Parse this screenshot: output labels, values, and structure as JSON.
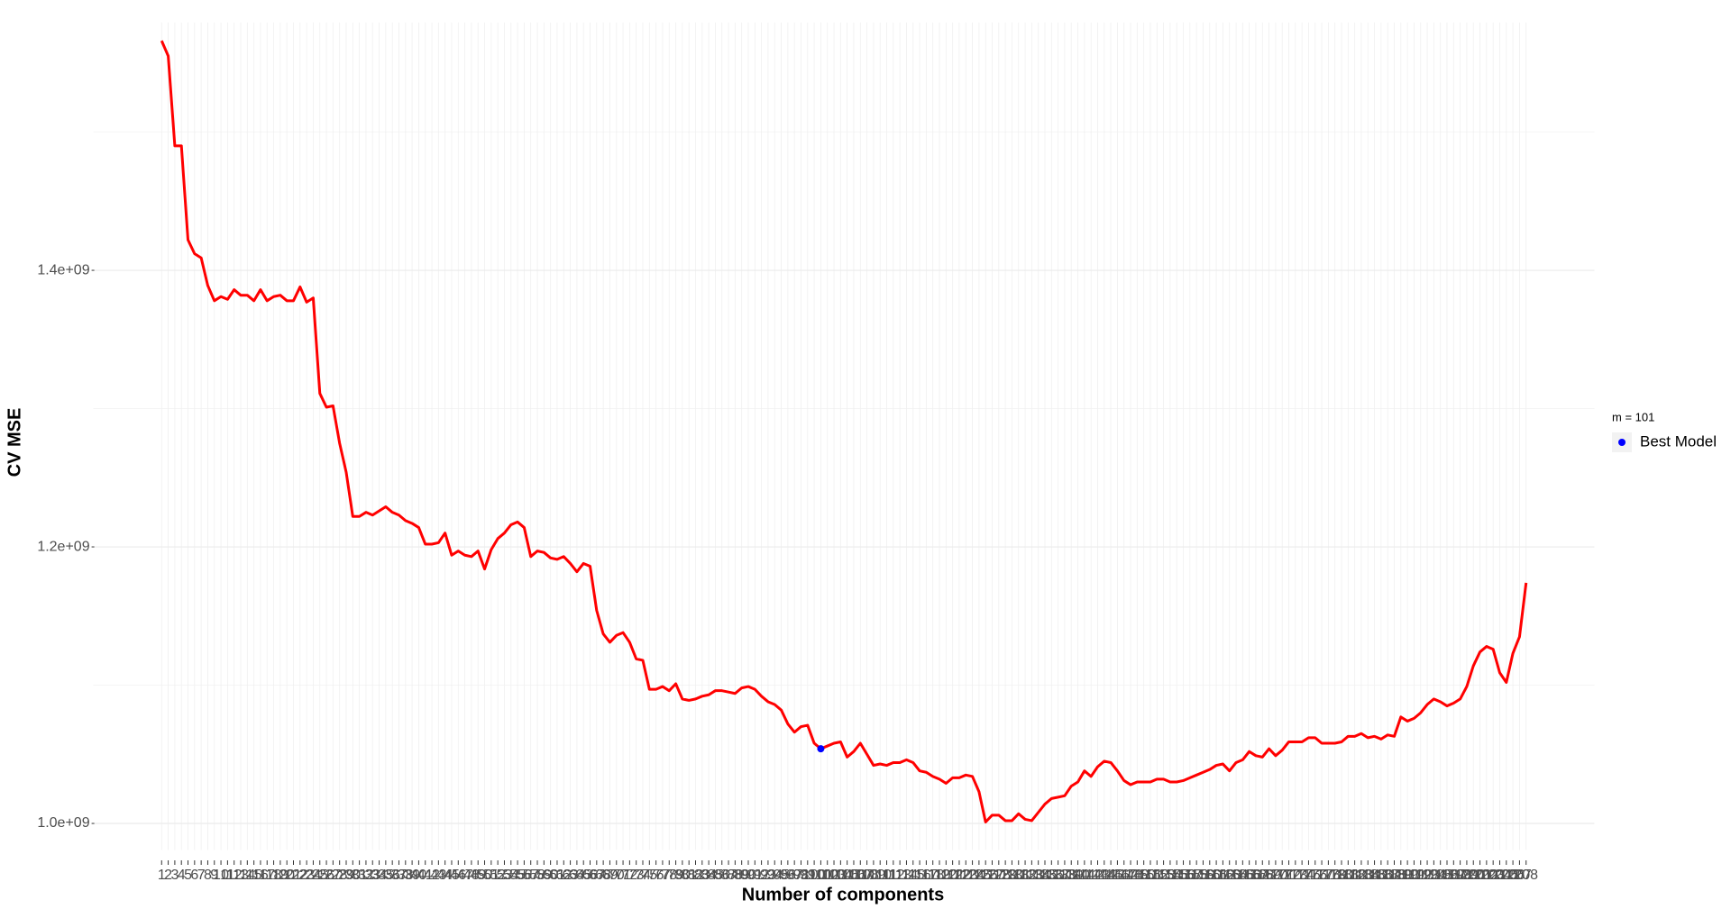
{
  "chart_data": {
    "type": "line",
    "xlabel": "Number of components",
    "ylabel": "CV MSE",
    "x": [
      1,
      2,
      3,
      4,
      5,
      6,
      7,
      8,
      9,
      10,
      11,
      12,
      13,
      14,
      15,
      16,
      17,
      18,
      19,
      20,
      21,
      22,
      23,
      24,
      25,
      26,
      27,
      28,
      29,
      30,
      31,
      32,
      33,
      34,
      35,
      36,
      37,
      38,
      39,
      40,
      41,
      42,
      43,
      44,
      45,
      46,
      47,
      48,
      49,
      50,
      51,
      52,
      53,
      54,
      55,
      56,
      57,
      58,
      59,
      60,
      61,
      62,
      63,
      64,
      65,
      66,
      67,
      68,
      69,
      70,
      71,
      72,
      73,
      74,
      75,
      76,
      77,
      78,
      79,
      80,
      81,
      82,
      83,
      84,
      85,
      86,
      87,
      88,
      89,
      90,
      91,
      92,
      93,
      94,
      95,
      96,
      97,
      98,
      99,
      100,
      101,
      102,
      103,
      104,
      105,
      106,
      107,
      108,
      109,
      110,
      111,
      112,
      113,
      114,
      115,
      116,
      117,
      118,
      119,
      120,
      121,
      122,
      123,
      124,
      125,
      126,
      127,
      128,
      129,
      130,
      131,
      132,
      133,
      134,
      135,
      136,
      137,
      138,
      139,
      140,
      141,
      142,
      143,
      144,
      145,
      146,
      147,
      148,
      149,
      150,
      151,
      152,
      153,
      154,
      155,
      156,
      157,
      158,
      159,
      160,
      161,
      162,
      163,
      164,
      165,
      166,
      167,
      168,
      169,
      170,
      171,
      172,
      173,
      174,
      175,
      176,
      177,
      178,
      179,
      180,
      181,
      182,
      183,
      184,
      185,
      186,
      187,
      188,
      189,
      190,
      191,
      192,
      193,
      194,
      195,
      196,
      197,
      198,
      199,
      200,
      201,
      202,
      203,
      204,
      205,
      206,
      207,
      208
    ],
    "xlim": [
      -9.35,
      218.35
    ],
    "ylim": [
      980800000,
      1579200000
    ],
    "yticks": [
      {
        "value": 1000000000,
        "label": "1.0e+09"
      },
      {
        "value": 1200000000,
        "label": "1.2e+09"
      },
      {
        "value": 1400000000,
        "label": "1.4e+09"
      }
    ],
    "yminor": [
      1100000000,
      1300000000,
      1500000000
    ],
    "grid": true,
    "legend": "right",
    "legend_title": "m = 101",
    "series": [
      {
        "color": "#ff0000",
        "values": [
          1566000000.0,
          1555000000.0,
          1490000000.0,
          1490000000.0,
          1422000000.0,
          1412000000.0,
          1409000000.0,
          1389000000.0,
          1378000000.0,
          1381000000.0,
          1379000000.0,
          1386000000.0,
          1382000000.0,
          1382000000.0,
          1378000000.0,
          1386000000.0,
          1378000000.0,
          1381000000.0,
          1382000000.0,
          1378000000.0,
          1378000000.0,
          1388000000.0,
          1377000000.0,
          1380000000.0,
          1311000000.0,
          1301000000.0,
          1302000000.0,
          1275000000.0,
          1254000000.0,
          1222000000.0,
          1222000000.0,
          1225000000.0,
          1223000000.0,
          1226000000.0,
          1229000000.0,
          1225000000.0,
          1223000000.0,
          1219000000.0,
          1217000000.0,
          1214000000.0,
          1202000000.0,
          1202000000.0,
          1203000000.0,
          1210000000.0,
          1194000000.0,
          1197000000.0,
          1194000000.0,
          1193000000.0,
          1197000000.0,
          1184000000.0,
          1198000000.0,
          1206000000.0,
          1210000000.0,
          1216000000.0,
          1218000000.0,
          1214000000.0,
          1193000000.0,
          1197000000.0,
          1196000000.0,
          1192000000.0,
          1191000000.0,
          1193000000.0,
          1188000000.0,
          1182000000.0,
          1188000000.0,
          1186000000.0,
          1154000000.0,
          1137000000.0,
          1131000000.0,
          1136000000.0,
          1138000000.0,
          1131000000.0,
          1119000000.0,
          1118000000.0,
          1097000000.0,
          1097000000.0,
          1099000000.0,
          1096000000.0,
          1101000000.0,
          1090000000.0,
          1089000000.0,
          1090000000.0,
          1092000000.0,
          1093000000.0,
          1096000000.0,
          1096000000.0,
          1095000000.0,
          1094000000.0,
          1098000000.0,
          1099000000.0,
          1097000000.0,
          1092000000.0,
          1088000000.0,
          1086000000.0,
          1082000000.0,
          1072000000.0,
          1066000000.0,
          1070000000.0,
          1071000000.0,
          1058000000.0,
          1054000000.0,
          1056000000.0,
          1058000000.0,
          1059000000.0,
          1048000000.0,
          1052000000.0,
          1058000000.0,
          1050000000.0,
          1042000000.0,
          1043000000.0,
          1042000000.0,
          1044000000.0,
          1044000000.0,
          1046000000.0,
          1044000000.0,
          1038000000.0,
          1037000000.0,
          1034000000.0,
          1032000000.0,
          1029000000.0,
          1033000000.0,
          1033000000.0,
          1035000000.0,
          1034000000.0,
          1023000000.0,
          1001000000.0,
          1006000000.0,
          1006000000.0,
          1002000000.0,
          1002000000.0,
          1007000000.0,
          1003000000.0,
          1002000000.0,
          1008000000.0,
          1014000000.0,
          1018000000.0,
          1019000000.0,
          1020000000.0,
          1027000000.0,
          1030000000.0,
          1038000000.0,
          1034000000.0,
          1041000000.0,
          1045000000.0,
          1044000000.0,
          1038000000.0,
          1031000000.0,
          1028000000.0,
          1030000000.0,
          1030000000.0,
          1030000000.0,
          1032000000.0,
          1032000000.0,
          1030000000.0,
          1030000000.0,
          1031000000.0,
          1033000000.0,
          1035000000.0,
          1037000000.0,
          1039000000.0,
          1042000000.0,
          1043000000.0,
          1038000000.0,
          1044000000.0,
          1046000000.0,
          1052000000.0,
          1049000000.0,
          1048000000.0,
          1054000000.0,
          1049000000.0,
          1053000000.0,
          1059000000.0,
          1059000000.0,
          1059000000.0,
          1062000000.0,
          1062000000.0,
          1058000000.0,
          1058000000.0,
          1058000000.0,
          1059000000.0,
          1063000000.0,
          1063000000.0,
          1065000000.0,
          1062000000.0,
          1063000000.0,
          1061000000.0,
          1064000000.0,
          1063000000.0,
          1077000000.0,
          1074000000.0,
          1076000000.0,
          1080000000.0,
          1086000000.0,
          1090000000.0,
          1088000000.0,
          1085000000.0,
          1087000000.0,
          1090000000.0,
          1099000000.0,
          1114000000.0,
          1124000000.0,
          1128000000.0,
          1126000000.0,
          1109000000.0,
          1102000000.0,
          1123000000.0,
          1135000000.0,
          1174000000.0
        ]
      },
      {
        "name": "Best Model",
        "color": "#0000ff",
        "type": "point",
        "x": [
          101
        ],
        "values": [
          1054000000.0
        ]
      }
    ]
  }
}
